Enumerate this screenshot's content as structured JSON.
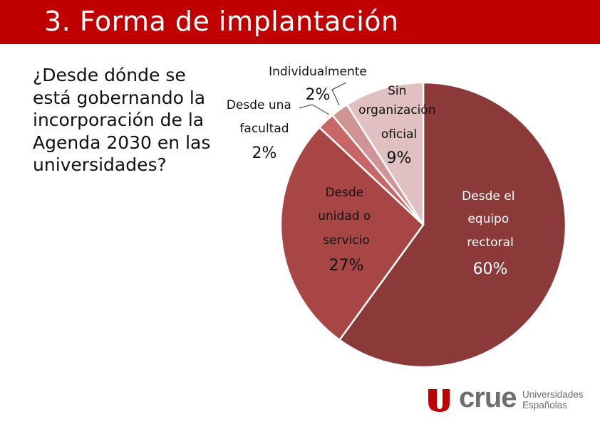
{
  "header": {
    "title": "3. Forma de implantación"
  },
  "question": {
    "text": "¿Desde dónde se está gobernando la incorporación de la Agenda 2030 en las universidades?"
  },
  "chart_data": {
    "type": "pie",
    "title": "",
    "slices": [
      {
        "label_lines": [
          "Desde el",
          "equipo",
          "rectoral"
        ],
        "value": 60,
        "value_label": "60%",
        "color": "#8b3a39"
      },
      {
        "label_lines": [
          "Desde",
          "unidad o",
          "servicio"
        ],
        "value": 27,
        "value_label": "27%",
        "color": "#a84545"
      },
      {
        "label_lines": [
          "Desde una",
          "facultad"
        ],
        "value": 2,
        "value_label": "2%",
        "color": "#c86566"
      },
      {
        "label_lines": [
          "Individualmente"
        ],
        "value": 2,
        "value_label": "2%",
        "color": "#d19495"
      },
      {
        "label_lines": [
          "Sin",
          "organización",
          "oficial"
        ],
        "value": 9,
        "value_label": "9%",
        "color": "#e0c0c0"
      }
    ]
  },
  "logo": {
    "wordmark": "crue",
    "subtitle_lines": [
      "Universidades",
      "Españolas"
    ],
    "mark_color": "#c00000"
  }
}
